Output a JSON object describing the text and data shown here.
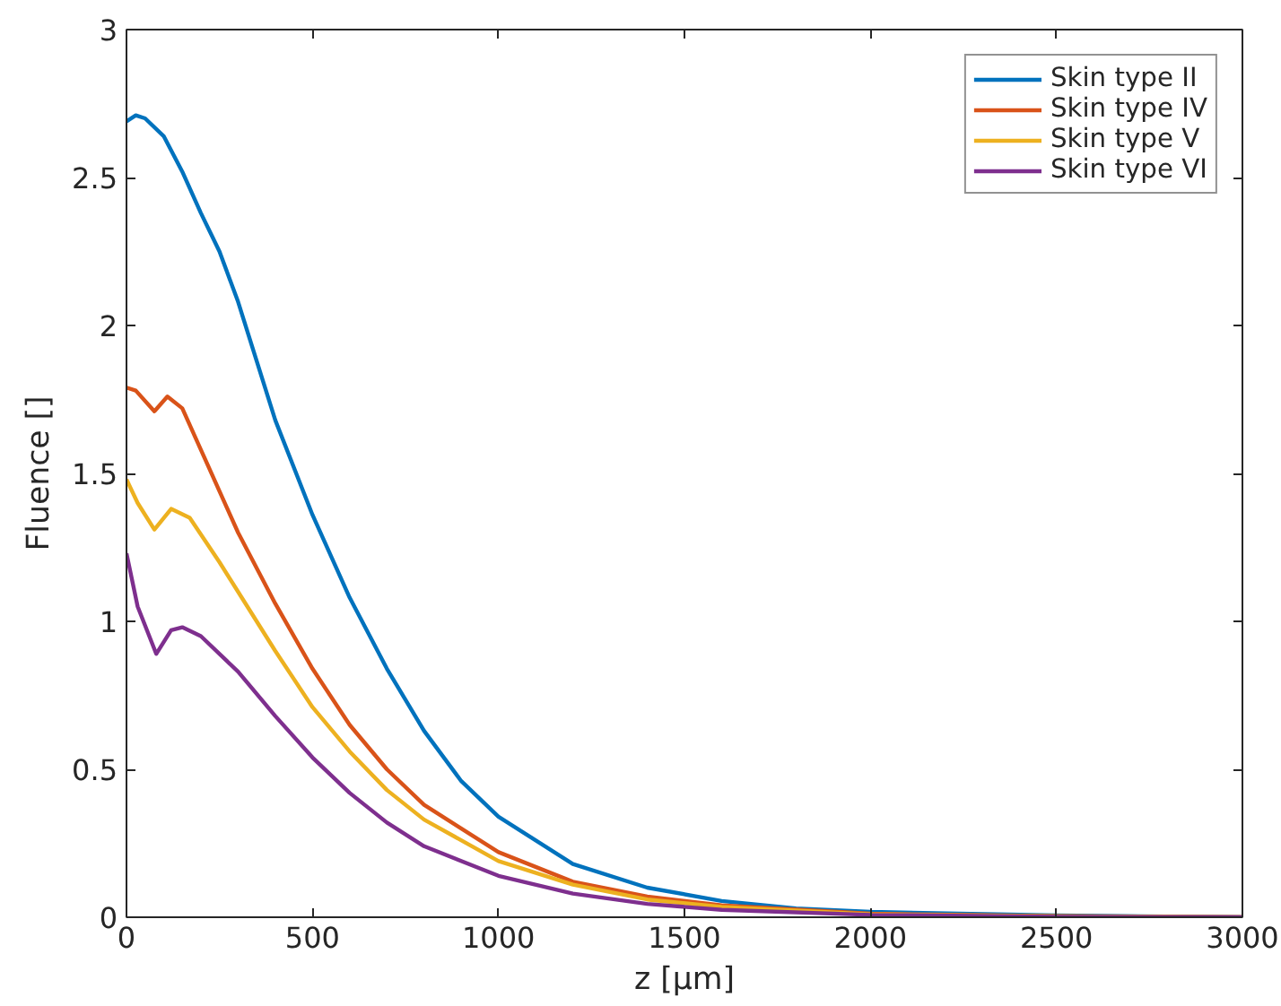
{
  "chart_data": {
    "type": "line",
    "xlabel": "z [μm]",
    "ylabel": "Fluence []",
    "xlim": [
      0,
      3000
    ],
    "ylim": [
      0,
      3
    ],
    "xticks": [
      0,
      500,
      1000,
      1500,
      2000,
      2500,
      3000
    ],
    "yticks": [
      0,
      0.5,
      1,
      1.5,
      2,
      2.5,
      3
    ],
    "grid": false,
    "legend": "top right",
    "marker": "none",
    "line_style": "solid",
    "series": [
      {
        "name": "Skin type II",
        "color": "#0072bd",
        "x": [
          0,
          25,
          50,
          100,
          150,
          200,
          250,
          300,
          350,
          400,
          500,
          600,
          700,
          800,
          900,
          1000,
          1200,
          1400,
          1600,
          1800,
          2000,
          2500,
          3000
        ],
        "values": [
          2.69,
          2.71,
          2.7,
          2.64,
          2.52,
          2.38,
          2.25,
          2.08,
          1.88,
          1.68,
          1.36,
          1.08,
          0.84,
          0.63,
          0.46,
          0.34,
          0.18,
          0.1,
          0.055,
          0.03,
          0.018,
          0.006,
          0
        ]
      },
      {
        "name": "Skin type IV",
        "color": "#d95319",
        "x": [
          0,
          25,
          75,
          110,
          150,
          200,
          300,
          400,
          500,
          600,
          700,
          800,
          1000,
          1200,
          1400,
          1600,
          2000,
          2500,
          3000
        ],
        "values": [
          1.79,
          1.78,
          1.71,
          1.76,
          1.72,
          1.58,
          1.3,
          1.06,
          0.84,
          0.65,
          0.5,
          0.38,
          0.22,
          0.12,
          0.07,
          0.04,
          0.012,
          0.004,
          0
        ]
      },
      {
        "name": "Skin type V",
        "color": "#edb120",
        "x": [
          0,
          30,
          75,
          120,
          170,
          250,
          300,
          400,
          500,
          600,
          700,
          800,
          1000,
          1200,
          1400,
          1600,
          2000,
          2500,
          3000
        ],
        "values": [
          1.48,
          1.4,
          1.31,
          1.38,
          1.35,
          1.2,
          1.1,
          0.9,
          0.71,
          0.56,
          0.43,
          0.33,
          0.19,
          0.11,
          0.06,
          0.035,
          0.01,
          0.003,
          0
        ]
      },
      {
        "name": "Skin type VI",
        "color": "#7e2f8e",
        "x": [
          0,
          30,
          80,
          120,
          150,
          200,
          300,
          400,
          500,
          600,
          700,
          800,
          1000,
          1200,
          1400,
          1600,
          2000,
          2500,
          3000
        ],
        "values": [
          1.23,
          1.05,
          0.89,
          0.97,
          0.98,
          0.95,
          0.83,
          0.68,
          0.54,
          0.42,
          0.32,
          0.24,
          0.14,
          0.08,
          0.045,
          0.025,
          0.008,
          0.002,
          0
        ]
      }
    ]
  }
}
